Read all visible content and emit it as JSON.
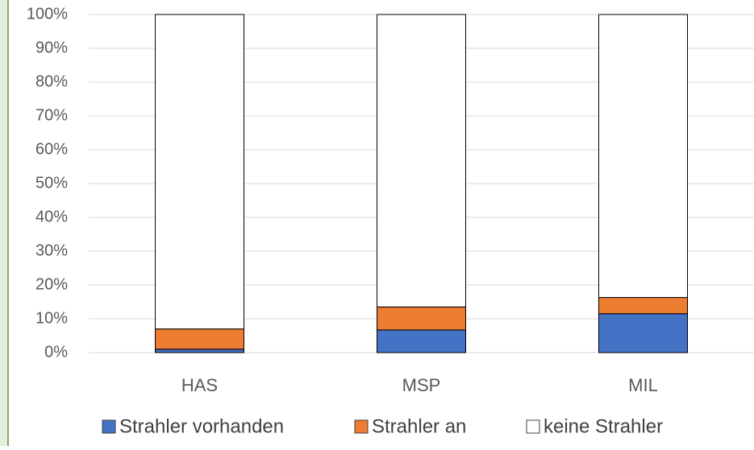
{
  "chart_data": {
    "type": "stacked_bar",
    "categories": [
      "HAS",
      "MSP",
      "MIL"
    ],
    "series": [
      {
        "name": "Strahler vorhanden",
        "color": "#4472c4",
        "values": [
          1,
          6.7,
          11.5
        ]
      },
      {
        "name": "Strahler an",
        "color": "#ed7d31",
        "values": [
          6,
          6.8,
          4.8
        ]
      },
      {
        "name": "keine Strahler",
        "color": "#ffffff",
        "values": [
          93,
          86.5,
          83.7
        ]
      }
    ],
    "ylim": [
      0,
      100
    ],
    "yticks": [
      {
        "value": 0,
        "label": "0%"
      },
      {
        "value": 10,
        "label": "10%"
      },
      {
        "value": 20,
        "label": "20%"
      },
      {
        "value": 30,
        "label": "30%"
      },
      {
        "value": 40,
        "label": "40%"
      },
      {
        "value": 50,
        "label": "50%"
      },
      {
        "value": 60,
        "label": "60%"
      },
      {
        "value": 70,
        "label": "70%"
      },
      {
        "value": 80,
        "label": "80%"
      },
      {
        "value": 90,
        "label": "90%"
      },
      {
        "value": 100,
        "label": "100%"
      }
    ],
    "grid": true,
    "legend": "bottom"
  }
}
